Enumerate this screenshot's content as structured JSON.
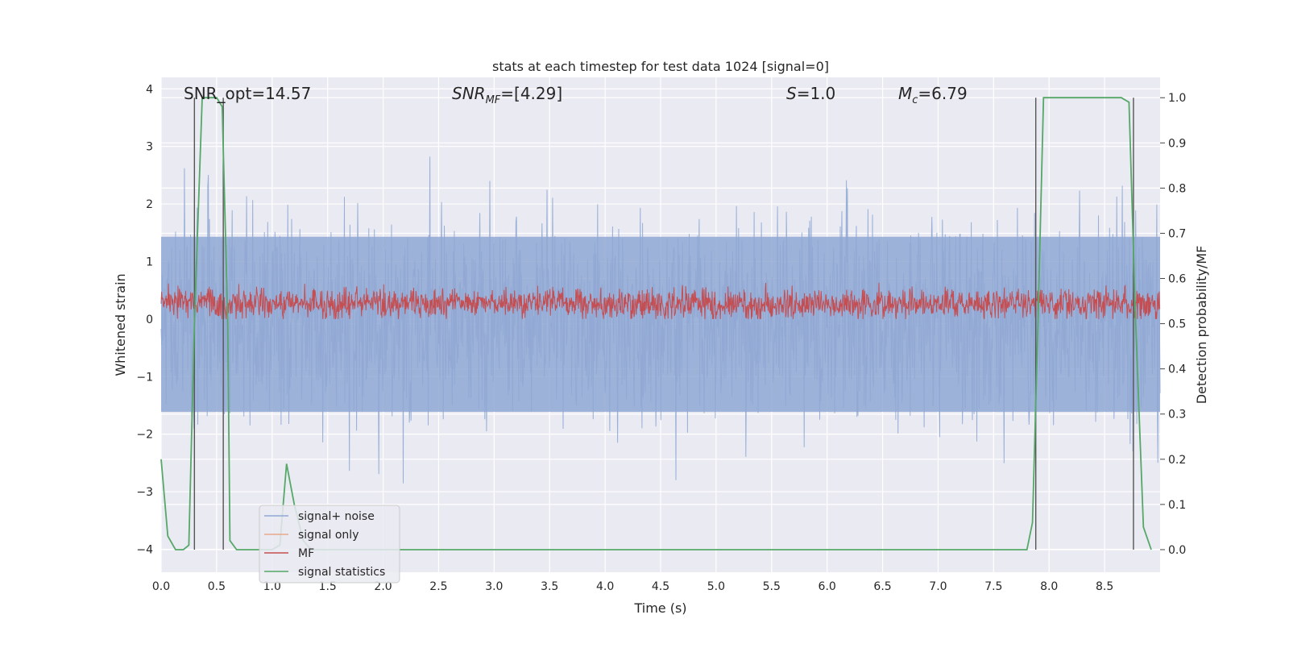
{
  "chart_data": {
    "type": "line",
    "title": "stats at each timestep for test data 1024 [signal=0]",
    "xlabel": "Time (s)",
    "ylabel": "Whitened strain",
    "ylabel_right": "Detection probability/MF",
    "xlim": [
      0.0,
      9.0
    ],
    "ylim": [
      -4.4,
      4.2
    ],
    "ylim_right": [
      -0.05,
      1.045
    ],
    "xticks": [
      "0.0",
      "0.5",
      "1.0",
      "1.5",
      "2.0",
      "2.5",
      "3.0",
      "3.5",
      "4.0",
      "4.5",
      "5.0",
      "5.5",
      "6.0",
      "6.5",
      "7.0",
      "7.5",
      "8.0",
      "8.5"
    ],
    "xtick_values": [
      0,
      0.5,
      1,
      1.5,
      2,
      2.5,
      3,
      3.5,
      4,
      4.5,
      5,
      5.5,
      6,
      6.5,
      7,
      7.5,
      8,
      8.5
    ],
    "yticks": [
      "4",
      "3",
      "2",
      "1",
      "0",
      "−1",
      "−2",
      "−3",
      "−4"
    ],
    "ytick_values": [
      4,
      3,
      2,
      1,
      0,
      -1,
      -2,
      -3,
      -4
    ],
    "yticks_right": [
      "1.0",
      "0.9",
      "0.8",
      "0.7",
      "0.6",
      "0.5",
      "0.4",
      "0.3",
      "0.2",
      "0.1",
      "0.0"
    ],
    "ytick_right_values": [
      1.0,
      0.9,
      0.8,
      0.7,
      0.6,
      0.5,
      0.4,
      0.3,
      0.2,
      0.1,
      0.0
    ],
    "annotations": {
      "snr_opt": "SNR_opt=14.57",
      "snr_mf_symbol": "SNR",
      "snr_mf_sub": "MF",
      "snr_mf_value": "=[4.29]",
      "s_symbol": "S",
      "s_value": "=1.0",
      "mc_symbol": "M",
      "mc_sub": "c",
      "mc_value": "=6.79"
    },
    "legend": {
      "position": "lower-left",
      "entries": [
        {
          "label": "signal+ noise",
          "color": "#8fa8d4"
        },
        {
          "label": "signal only",
          "color": "#e8a98c"
        },
        {
          "label": "MF",
          "color": "#c44e52"
        },
        {
          "label": "signal statistics",
          "color": "#55a868"
        }
      ]
    },
    "series": [
      {
        "name": "signal+ noise",
        "axis": "left",
        "style": "noise band",
        "color": "#8fa8d4",
        "approx_range": [
          -2.6,
          2.6
        ]
      },
      {
        "name": "signal only",
        "axis": "left",
        "color": "#e8a98c",
        "values": []
      },
      {
        "name": "MF",
        "axis": "left",
        "style": "noise band",
        "color": "#c44e52",
        "approx_range": [
          0.0,
          0.65
        ]
      },
      {
        "name": "signal statistics",
        "axis": "right",
        "color": "#55a868",
        "x": [
          0.0,
          0.06,
          0.13,
          0.2,
          0.25,
          0.3,
          0.37,
          0.43,
          0.5,
          0.55,
          0.6,
          0.62,
          0.68,
          0.75,
          0.8,
          0.9,
          1.0,
          1.07,
          1.13,
          1.2,
          1.28,
          1.35,
          1.5,
          2.0,
          3.0,
          4.0,
          5.0,
          6.0,
          7.0,
          7.1,
          7.5,
          7.8,
          7.85,
          7.9,
          7.95,
          8.0,
          8.5,
          8.65,
          8.72,
          8.78,
          8.85,
          8.92
        ],
        "y": [
          0.2,
          0.03,
          0.0,
          0.0,
          0.01,
          0.5,
          1.0,
          1.0,
          1.0,
          0.98,
          0.5,
          0.02,
          0.0,
          0.0,
          0.0,
          0.0,
          0.0,
          0.01,
          0.19,
          0.1,
          0.02,
          0.0,
          0.0,
          0.0,
          0.0,
          0.0,
          0.0,
          0.0,
          0.0,
          0.0,
          0.0,
          0.0,
          0.06,
          0.5,
          1.0,
          1.0,
          1.0,
          1.0,
          0.99,
          0.5,
          0.05,
          0.0
        ]
      }
    ],
    "vertical_markers": [
      0.3,
      0.56,
      7.88,
      8.76
    ]
  }
}
